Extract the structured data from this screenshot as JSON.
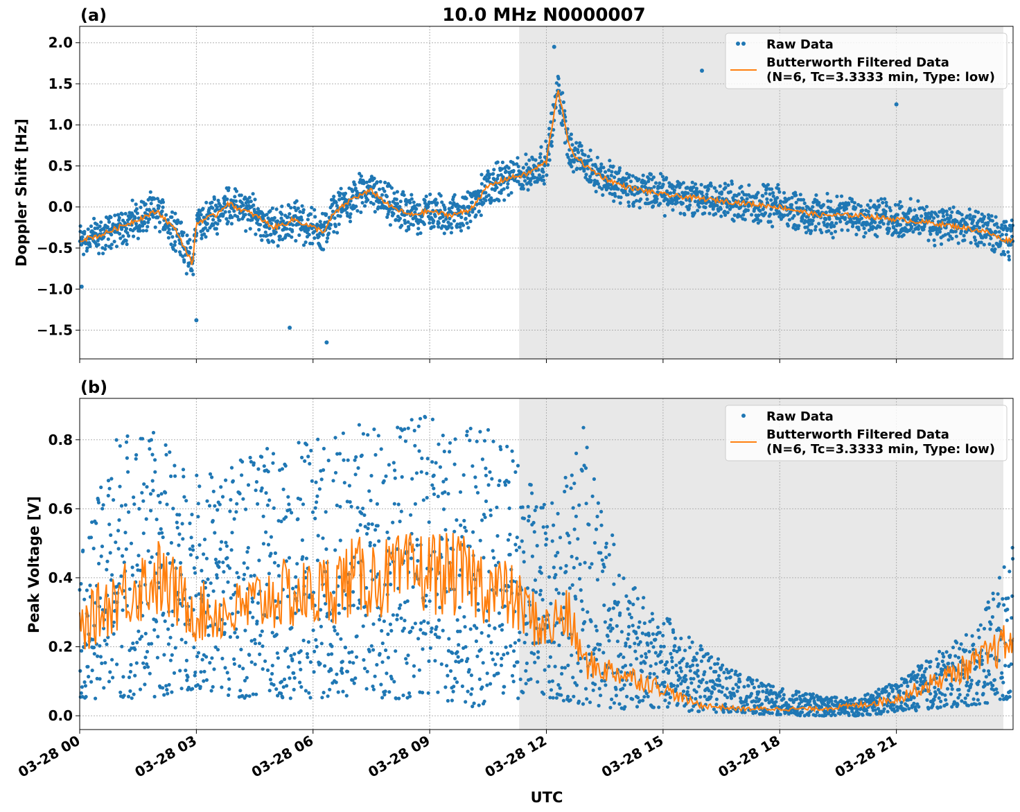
{
  "figure": {
    "title": "10.0 MHz N0000007",
    "xlabel": "UTC",
    "colors": {
      "raw": "#1f77b4",
      "filtered": "#ff7f0e",
      "shade": "#e8e8e8",
      "grid": "#b0b0b0"
    }
  },
  "chart_data": [
    {
      "type": "scatter",
      "panel_label": "(a)",
      "ylabel": "Doppler Shift [Hz]",
      "xlim_hours": [
        0,
        24
      ],
      "ylim": [
        -1.85,
        2.2
      ],
      "yticks": [
        2.0,
        1.5,
        1.0,
        0.5,
        0.0,
        -0.5,
        -1.0,
        -1.5
      ],
      "ytick_labels": [
        "2.0",
        "1.5",
        "1.0",
        "0.5",
        "0.0",
        "−0.5",
        "−1.0",
        "−1.5"
      ],
      "xticks_hours": [
        0,
        3,
        6,
        9,
        12,
        15,
        18,
        21
      ],
      "shaded_range_hours": [
        11.3,
        23.75
      ],
      "grid": true,
      "legend_position": "top-right",
      "legend": [
        "Raw Data",
        "Butterworth Filtered Data",
        "(N=6, Tc=3.3333 min, Type: low)"
      ],
      "series": [
        {
          "name": "Butterworth Filtered Data",
          "kind": "line",
          "x_hours": [
            0,
            0.5,
            1.0,
            1.5,
            2.0,
            2.5,
            2.9,
            3.0,
            3.2,
            3.5,
            3.8,
            4.0,
            4.5,
            5.0,
            5.3,
            5.5,
            6.0,
            6.3,
            6.5,
            7.0,
            7.5,
            8.0,
            8.5,
            9.0,
            9.5,
            10.0,
            10.5,
            11.0,
            11.5,
            12.0,
            12.3,
            12.6,
            13.0,
            13.5,
            14.0,
            15.0,
            16.0,
            17.0,
            18.0,
            19.0,
            20.0,
            21.0,
            22.0,
            22.7,
            23.3,
            23.75,
            24.0
          ],
          "values": [
            -0.4,
            -0.35,
            -0.25,
            -0.15,
            -0.05,
            -0.3,
            -0.7,
            -0.2,
            -0.15,
            -0.1,
            0.05,
            0.0,
            -0.1,
            -0.25,
            -0.2,
            -0.15,
            -0.25,
            -0.3,
            -0.1,
            0.1,
            0.2,
            0.0,
            -0.1,
            -0.05,
            -0.1,
            -0.05,
            0.25,
            0.35,
            0.4,
            0.55,
            1.45,
            0.7,
            0.5,
            0.35,
            0.25,
            0.15,
            0.1,
            0.05,
            0.0,
            -0.1,
            -0.1,
            -0.15,
            -0.2,
            -0.25,
            -0.3,
            -0.4,
            -0.4
          ]
        },
        {
          "name": "Raw Data",
          "kind": "scatter",
          "spread": 0.28,
          "outliers": [
            {
              "x_hours": 3.0,
              "value": -1.38
            },
            {
              "x_hours": 5.4,
              "value": -1.47
            },
            {
              "x_hours": 6.35,
              "value": -1.65
            },
            {
              "x_hours": 12.2,
              "value": 1.95
            },
            {
              "x_hours": 16.0,
              "value": 1.66
            },
            {
              "x_hours": 21.0,
              "value": 1.25
            },
            {
              "x_hours": 0.05,
              "value": -0.97
            }
          ]
        }
      ]
    },
    {
      "type": "scatter",
      "panel_label": "(b)",
      "ylabel": "Peak Voltage [V]",
      "xlim_hours": [
        0,
        24
      ],
      "ylim": [
        -0.04,
        0.92
      ],
      "yticks": [
        0.8,
        0.6,
        0.4,
        0.2,
        0.0
      ],
      "ytick_labels": [
        "0.8",
        "0.6",
        "0.4",
        "0.2",
        "0.0"
      ],
      "xticks_hours": [
        0,
        3,
        6,
        9,
        12,
        15,
        18,
        21
      ],
      "xtick_labels": [
        "03-28 00",
        "03-28 03",
        "03-28 06",
        "03-28 09",
        "03-28 12",
        "03-28 15",
        "03-28 18",
        "03-28 21"
      ],
      "shaded_range_hours": [
        11.3,
        23.75
      ],
      "grid": true,
      "legend_position": "top-right",
      "legend": [
        "Raw Data",
        "Butterworth Filtered Data",
        "(N=6, Tc=3.3333 min, Type: low)"
      ],
      "series": [
        {
          "name": "Butterworth Filtered Data",
          "kind": "line",
          "x_hours": [
            0,
            1.0,
            2.0,
            3.0,
            4.0,
            5.0,
            6.0,
            7.0,
            8.0,
            9.0,
            10.0,
            11.0,
            12.0,
            12.5,
            13.0,
            14.0,
            15.0,
            15.5,
            16.0,
            17.0,
            18.0,
            19.0,
            20.0,
            21.0,
            22.0,
            23.0,
            24.0
          ],
          "values": [
            0.25,
            0.35,
            0.4,
            0.3,
            0.3,
            0.35,
            0.35,
            0.4,
            0.4,
            0.42,
            0.4,
            0.35,
            0.25,
            0.3,
            0.15,
            0.12,
            0.08,
            0.05,
            0.03,
            0.02,
            0.02,
            0.02,
            0.03,
            0.05,
            0.1,
            0.15,
            0.22
          ]
        },
        {
          "name": "Raw Data",
          "kind": "scatter",
          "upper_envelope": [
            0.45,
            0.85,
            0.82,
            0.7,
            0.75,
            0.78,
            0.8,
            0.85,
            0.86,
            0.87,
            0.86,
            0.8,
            0.62,
            0.85,
            0.4,
            0.3,
            0.2,
            0.12,
            0.08,
            0.06,
            0.05,
            0.1,
            0.18,
            0.25,
            0.5
          ],
          "lower_envelope": [
            0.05,
            0.05,
            0.05,
            0.08,
            0.05,
            0.05,
            0.05,
            0.05,
            0.05,
            0.05,
            0.02,
            0.05,
            0.05,
            0.03,
            0.02,
            0.02,
            0.01,
            0.01,
            0.0,
            0.0,
            0.0,
            0.01,
            0.02,
            0.03,
            0.05
          ]
        }
      ]
    }
  ]
}
